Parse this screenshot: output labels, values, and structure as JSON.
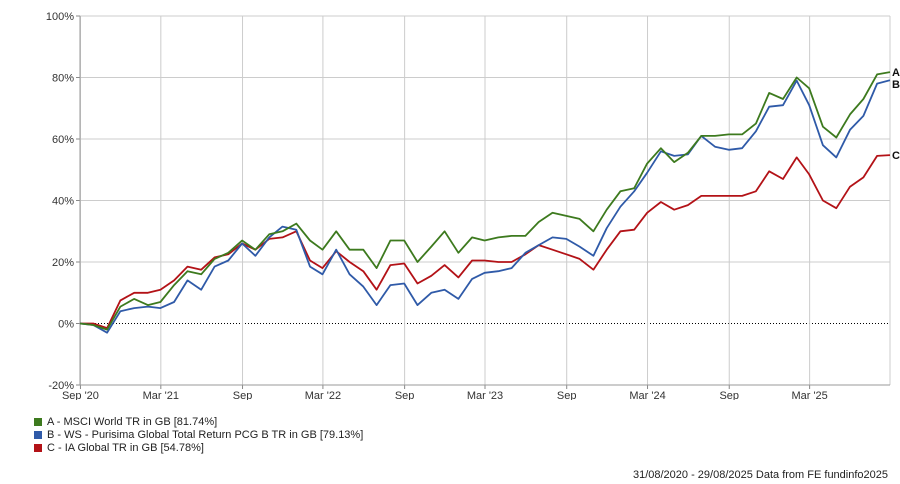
{
  "chart_data": {
    "type": "line",
    "title": "",
    "xlabel": "",
    "ylabel": "",
    "ylim": [
      -20,
      100
    ],
    "y_ticks": [
      -20,
      0,
      20,
      40,
      60,
      80,
      100
    ],
    "y_tick_labels": [
      "-20%",
      "0%",
      "20%",
      "40%",
      "60%",
      "80%",
      "100%"
    ],
    "x_ticks": [
      {
        "date": "2020-09-01",
        "label": "Sep '20"
      },
      {
        "date": "2021-03-01",
        "label": "Mar '21"
      },
      {
        "date": "2021-09-01",
        "label": "Sep"
      },
      {
        "date": "2022-03-01",
        "label": "Mar '22"
      },
      {
        "date": "2022-09-01",
        "label": "Sep"
      },
      {
        "date": "2023-03-01",
        "label": "Mar '23"
      },
      {
        "date": "2023-09-01",
        "label": "Sep"
      },
      {
        "date": "2024-03-01",
        "label": "Mar '24"
      },
      {
        "date": "2024-09-01",
        "label": "Sep"
      },
      {
        "date": "2025-03-01",
        "label": "Mar '25"
      }
    ],
    "x_range": [
      "2020-08-31",
      "2025-08-29"
    ],
    "grid": true,
    "legend_position": "bottom-left",
    "x": [
      "2020-08-31",
      "2020-09-30",
      "2020-10-31",
      "2020-11-30",
      "2020-12-31",
      "2021-01-31",
      "2021-02-28",
      "2021-03-31",
      "2021-04-30",
      "2021-05-31",
      "2021-06-30",
      "2021-07-31",
      "2021-08-31",
      "2021-09-30",
      "2021-10-31",
      "2021-11-30",
      "2021-12-31",
      "2022-01-31",
      "2022-02-28",
      "2022-03-31",
      "2022-04-30",
      "2022-05-31",
      "2022-06-30",
      "2022-07-31",
      "2022-08-31",
      "2022-09-30",
      "2022-10-31",
      "2022-11-30",
      "2022-12-31",
      "2023-01-31",
      "2023-02-28",
      "2023-03-31",
      "2023-04-30",
      "2023-05-31",
      "2023-06-30",
      "2023-07-31",
      "2023-08-31",
      "2023-09-30",
      "2023-10-31",
      "2023-11-30",
      "2023-12-31",
      "2024-01-31",
      "2024-02-29",
      "2024-03-31",
      "2024-04-30",
      "2024-05-31",
      "2024-06-30",
      "2024-07-31",
      "2024-08-31",
      "2024-09-30",
      "2024-10-31",
      "2024-11-30",
      "2024-12-31",
      "2025-01-31",
      "2025-02-28",
      "2025-03-31",
      "2025-04-30",
      "2025-05-31",
      "2025-06-30",
      "2025-07-31",
      "2025-08-29"
    ],
    "series": [
      {
        "name": "A - MSCI World TR in GB [81.74%]",
        "marker": "A",
        "color": "#3d7a1e",
        "values": [
          0,
          -0.5,
          -2,
          5.5,
          8,
          6,
          7,
          12.5,
          17,
          16,
          21,
          23,
          27,
          24,
          29,
          30,
          32.5,
          27,
          24,
          30,
          24,
          24,
          18,
          27,
          27,
          20,
          25,
          30,
          23,
          28,
          27,
          28,
          28.5,
          28.5,
          33,
          36,
          35,
          34,
          30,
          37,
          43,
          44,
          52,
          57,
          52.5,
          55.5,
          61,
          61,
          61.5,
          61.5,
          65,
          75,
          73,
          80,
          76.5,
          64,
          60.5,
          68,
          73,
          81,
          81.74
        ]
      },
      {
        "name": "B - WS - Purisima Global Total Return PCG B TR in GB [79.13%]",
        "marker": "B",
        "color": "#2f5aa8",
        "values": [
          0,
          -0.5,
          -3,
          4,
          5,
          5.5,
          5,
          7,
          14,
          11,
          18.5,
          20.5,
          26,
          22,
          28,
          31.5,
          30.5,
          18.5,
          16,
          24,
          16,
          12,
          6,
          12.5,
          13,
          6,
          10,
          11,
          8,
          14.5,
          16.5,
          17,
          18,
          23,
          25.5,
          28,
          27.5,
          25,
          22,
          31,
          38,
          43,
          49,
          56,
          54.5,
          55,
          61,
          57.5,
          56.5,
          57,
          62.5,
          70.5,
          71,
          79,
          71,
          58,
          54,
          63,
          67.5,
          78,
          79.13
        ]
      },
      {
        "name": "C - IA Global TR in GB [54.78%]",
        "marker": "C",
        "color": "#b31217",
        "values": [
          0,
          0,
          -1.5,
          7.5,
          10,
          10,
          11,
          14,
          18.5,
          17.5,
          21.5,
          22.5,
          26,
          24,
          27.5,
          28,
          30,
          20.5,
          18,
          23.5,
          20,
          17,
          11,
          19,
          19.5,
          13,
          15.5,
          19,
          15,
          20.5,
          20.5,
          20,
          20,
          22.5,
          25.5,
          24,
          22.5,
          21,
          17.5,
          24,
          30,
          30.5,
          36,
          39.5,
          37,
          38.5,
          41.5,
          41.5,
          41.5,
          41.5,
          43,
          49.5,
          47,
          54,
          48.5,
          40,
          37.5,
          44.5,
          47.5,
          54.5,
          54.78
        ]
      }
    ]
  },
  "footer": {
    "date_range": "31/08/2020 - 29/08/2025",
    "source": "Data from FE fundinfo2025"
  }
}
